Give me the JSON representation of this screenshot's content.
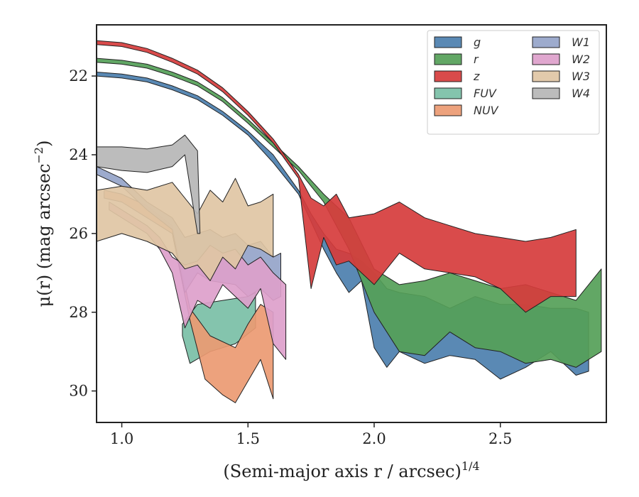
{
  "chart_data": {
    "type": "area",
    "xlabel": "(Semi-major axis r / arcsec)",
    "xlabel_sup": "1/4",
    "ylabel": "μ(r) (mag arcsec",
    "ylabel_sup": "−2",
    "ylabel_tail": ")",
    "xlim": [
      0.9,
      2.92
    ],
    "ylim": [
      30.8,
      20.7
    ],
    "y_inverted": true,
    "xticks": [
      1.0,
      1.5,
      2.0,
      2.5
    ],
    "xtick_labels": [
      "1.0",
      "1.5",
      "2.0",
      "2.5"
    ],
    "yticks": [
      22,
      24,
      26,
      28,
      30
    ],
    "ytick_labels": [
      "22",
      "24",
      "26",
      "28",
      "30"
    ],
    "legend_placement": "top-right",
    "series": [
      {
        "name": "g",
        "color": "#4c7fae",
        "upper": [
          [
            0.9,
            21.9
          ],
          [
            1.0,
            21.95
          ],
          [
            1.1,
            22.05
          ],
          [
            1.2,
            22.25
          ],
          [
            1.3,
            22.5
          ],
          [
            1.4,
            22.9
          ],
          [
            1.5,
            23.4
          ],
          [
            1.6,
            24.0
          ],
          [
            1.7,
            24.9
          ],
          [
            1.75,
            25.5
          ],
          [
            1.8,
            26.0
          ],
          [
            1.85,
            26.4
          ],
          [
            1.9,
            26.5
          ],
          [
            1.95,
            26.7
          ],
          [
            2.0,
            27.0
          ],
          [
            2.05,
            27.4
          ],
          [
            2.1,
            27.5
          ],
          [
            2.2,
            27.6
          ],
          [
            2.3,
            27.9
          ],
          [
            2.4,
            27.6
          ],
          [
            2.5,
            27.8
          ],
          [
            2.6,
            27.8
          ],
          [
            2.7,
            27.9
          ],
          [
            2.8,
            27.9
          ],
          [
            2.85,
            28.0
          ]
        ],
        "lower": [
          [
            0.9,
            22.0
          ],
          [
            1.0,
            22.05
          ],
          [
            1.1,
            22.15
          ],
          [
            1.2,
            22.35
          ],
          [
            1.3,
            22.6
          ],
          [
            1.4,
            23.0
          ],
          [
            1.5,
            23.5
          ],
          [
            1.6,
            24.2
          ],
          [
            1.7,
            25.0
          ],
          [
            1.75,
            25.7
          ],
          [
            1.8,
            26.4
          ],
          [
            1.85,
            27.0
          ],
          [
            1.9,
            27.5
          ],
          [
            1.95,
            27.2
          ],
          [
            2.0,
            28.9
          ],
          [
            2.05,
            29.4
          ],
          [
            2.1,
            29.0
          ],
          [
            2.2,
            29.3
          ],
          [
            2.3,
            29.1
          ],
          [
            2.4,
            29.2
          ],
          [
            2.5,
            29.7
          ],
          [
            2.6,
            29.4
          ],
          [
            2.7,
            29.0
          ],
          [
            2.8,
            29.6
          ],
          [
            2.85,
            29.5
          ]
        ]
      },
      {
        "name": "r",
        "color": "#55a058",
        "upper": [
          [
            0.9,
            21.55
          ],
          [
            1.0,
            21.6
          ],
          [
            1.1,
            21.7
          ],
          [
            1.2,
            21.9
          ],
          [
            1.3,
            22.15
          ],
          [
            1.4,
            22.55
          ],
          [
            1.5,
            23.1
          ],
          [
            1.6,
            23.7
          ],
          [
            1.7,
            24.3
          ],
          [
            1.8,
            25.0
          ],
          [
            1.9,
            25.6
          ],
          [
            2.0,
            26.9
          ],
          [
            2.1,
            27.3
          ],
          [
            2.2,
            27.2
          ],
          [
            2.3,
            27.0
          ],
          [
            2.4,
            27.2
          ],
          [
            2.5,
            27.4
          ],
          [
            2.6,
            27.3
          ],
          [
            2.7,
            27.5
          ],
          [
            2.8,
            27.7
          ],
          [
            2.9,
            26.9
          ]
        ],
        "lower": [
          [
            0.9,
            21.65
          ],
          [
            1.0,
            21.7
          ],
          [
            1.1,
            21.8
          ],
          [
            1.2,
            22.0
          ],
          [
            1.3,
            22.25
          ],
          [
            1.4,
            22.65
          ],
          [
            1.5,
            23.2
          ],
          [
            1.6,
            23.8
          ],
          [
            1.7,
            24.4
          ],
          [
            1.8,
            25.2
          ],
          [
            1.9,
            26.4
          ],
          [
            2.0,
            28.0
          ],
          [
            2.1,
            29.0
          ],
          [
            2.2,
            29.1
          ],
          [
            2.3,
            28.5
          ],
          [
            2.4,
            28.9
          ],
          [
            2.5,
            29.0
          ],
          [
            2.6,
            29.3
          ],
          [
            2.7,
            29.2
          ],
          [
            2.8,
            29.4
          ],
          [
            2.9,
            29.0
          ]
        ]
      },
      {
        "name": "z",
        "color": "#d63c3c",
        "upper": [
          [
            0.9,
            21.1
          ],
          [
            1.0,
            21.15
          ],
          [
            1.1,
            21.3
          ],
          [
            1.2,
            21.55
          ],
          [
            1.3,
            21.85
          ],
          [
            1.4,
            22.3
          ],
          [
            1.5,
            22.9
          ],
          [
            1.6,
            23.6
          ],
          [
            1.7,
            24.5
          ],
          [
            1.75,
            25.1
          ],
          [
            1.8,
            25.3
          ],
          [
            1.85,
            25.0
          ],
          [
            1.9,
            25.6
          ],
          [
            2.0,
            25.5
          ],
          [
            2.1,
            25.2
          ],
          [
            2.2,
            25.6
          ],
          [
            2.3,
            25.8
          ],
          [
            2.4,
            26.0
          ],
          [
            2.5,
            26.1
          ],
          [
            2.6,
            26.2
          ],
          [
            2.7,
            26.1
          ],
          [
            2.8,
            25.9
          ]
        ],
        "lower": [
          [
            0.9,
            21.2
          ],
          [
            1.0,
            21.25
          ],
          [
            1.1,
            21.4
          ],
          [
            1.2,
            21.65
          ],
          [
            1.3,
            21.95
          ],
          [
            1.4,
            22.4
          ],
          [
            1.5,
            23.0
          ],
          [
            1.6,
            23.7
          ],
          [
            1.7,
            24.6
          ],
          [
            1.75,
            27.4
          ],
          [
            1.8,
            26.1
          ],
          [
            1.85,
            26.8
          ],
          [
            1.9,
            26.7
          ],
          [
            2.0,
            27.3
          ],
          [
            2.1,
            26.5
          ],
          [
            2.2,
            26.9
          ],
          [
            2.3,
            27.0
          ],
          [
            2.4,
            27.1
          ],
          [
            2.5,
            27.4
          ],
          [
            2.6,
            28.0
          ],
          [
            2.7,
            27.6
          ],
          [
            2.8,
            27.6
          ]
        ]
      },
      {
        "name": "FUV",
        "color": "#7abfa6",
        "upper": [
          [
            1.24,
            28.3
          ],
          [
            1.3,
            27.8
          ],
          [
            1.4,
            27.7
          ],
          [
            1.5,
            27.6
          ],
          [
            1.53,
            27.5
          ]
        ],
        "lower": [
          [
            1.24,
            28.6
          ],
          [
            1.27,
            29.3
          ],
          [
            1.35,
            29.0
          ],
          [
            1.45,
            28.8
          ],
          [
            1.53,
            28.4
          ]
        ]
      },
      {
        "name": "NUV",
        "color": "#eb9a72",
        "upper": [
          [
            0.93,
            24.9
          ],
          [
            1.0,
            25.0
          ],
          [
            1.1,
            25.3
          ],
          [
            1.2,
            25.8
          ],
          [
            1.27,
            27.9
          ],
          [
            1.35,
            28.6
          ],
          [
            1.45,
            28.9
          ],
          [
            1.5,
            28.3
          ],
          [
            1.55,
            27.8
          ],
          [
            1.6,
            28.0
          ]
        ],
        "lower": [
          [
            0.93,
            25.1
          ],
          [
            1.0,
            25.2
          ],
          [
            1.1,
            25.6
          ],
          [
            1.2,
            26.0
          ],
          [
            1.27,
            28.2
          ],
          [
            1.33,
            29.7
          ],
          [
            1.4,
            30.1
          ],
          [
            1.45,
            30.3
          ],
          [
            1.55,
            29.2
          ],
          [
            1.6,
            30.2
          ]
        ]
      },
      {
        "name": "W1",
        "color": "#95a4c9",
        "upper": [
          [
            0.9,
            24.3
          ],
          [
            1.0,
            24.6
          ],
          [
            1.1,
            25.2
          ],
          [
            1.2,
            25.6
          ],
          [
            1.25,
            26.1
          ],
          [
            1.35,
            25.9
          ],
          [
            1.4,
            26.1
          ],
          [
            1.45,
            26.0
          ],
          [
            1.5,
            26.3
          ],
          [
            1.55,
            26.2
          ],
          [
            1.6,
            26.6
          ],
          [
            1.63,
            26.5
          ]
        ],
        "lower": [
          [
            0.9,
            24.5
          ],
          [
            1.0,
            24.8
          ],
          [
            1.1,
            25.4
          ],
          [
            1.2,
            25.9
          ],
          [
            1.25,
            27.5
          ],
          [
            1.3,
            27.0
          ],
          [
            1.35,
            27.2
          ],
          [
            1.45,
            27.3
          ],
          [
            1.5,
            27.6
          ],
          [
            1.55,
            27.4
          ],
          [
            1.6,
            27.7
          ],
          [
            1.63,
            27.6
          ]
        ]
      },
      {
        "name": "W2",
        "color": "#dda0cb",
        "upper": [
          [
            0.95,
            25.2
          ],
          [
            1.0,
            25.4
          ],
          [
            1.1,
            25.8
          ],
          [
            1.15,
            26.1
          ],
          [
            1.2,
            26.6
          ],
          [
            1.25,
            26.8
          ],
          [
            1.3,
            26.7
          ],
          [
            1.35,
            26.3
          ],
          [
            1.4,
            26.5
          ],
          [
            1.45,
            26.4
          ],
          [
            1.5,
            26.8
          ],
          [
            1.55,
            26.6
          ],
          [
            1.6,
            27.0
          ],
          [
            1.65,
            27.3
          ]
        ],
        "lower": [
          [
            0.95,
            25.4
          ],
          [
            1.0,
            25.6
          ],
          [
            1.1,
            26.0
          ],
          [
            1.15,
            26.4
          ],
          [
            1.2,
            27.0
          ],
          [
            1.25,
            28.4
          ],
          [
            1.3,
            27.7
          ],
          [
            1.35,
            27.9
          ],
          [
            1.4,
            27.3
          ],
          [
            1.45,
            27.6
          ],
          [
            1.5,
            27.9
          ],
          [
            1.55,
            27.4
          ],
          [
            1.6,
            28.8
          ],
          [
            1.65,
            29.2
          ]
        ]
      },
      {
        "name": "W3",
        "color": "#dfc6a4",
        "upper": [
          [
            0.9,
            24.9
          ],
          [
            1.0,
            24.8
          ],
          [
            1.1,
            24.9
          ],
          [
            1.2,
            24.7
          ],
          [
            1.3,
            25.5
          ],
          [
            1.35,
            24.9
          ],
          [
            1.4,
            25.2
          ],
          [
            1.45,
            24.6
          ],
          [
            1.5,
            25.3
          ],
          [
            1.55,
            25.2
          ],
          [
            1.6,
            25.0
          ]
        ],
        "lower": [
          [
            0.9,
            26.2
          ],
          [
            1.0,
            26.0
          ],
          [
            1.1,
            26.2
          ],
          [
            1.2,
            26.5
          ],
          [
            1.25,
            26.9
          ],
          [
            1.3,
            26.8
          ],
          [
            1.35,
            27.2
          ],
          [
            1.4,
            26.6
          ],
          [
            1.45,
            26.9
          ],
          [
            1.5,
            26.3
          ],
          [
            1.55,
            26.4
          ],
          [
            1.6,
            26.6
          ]
        ]
      },
      {
        "name": "W4",
        "color": "#b6b6b6",
        "upper": [
          [
            0.9,
            23.8
          ],
          [
            1.0,
            23.8
          ],
          [
            1.1,
            23.85
          ],
          [
            1.2,
            23.75
          ],
          [
            1.25,
            23.5
          ],
          [
            1.3,
            23.9
          ],
          [
            1.31,
            26.0
          ]
        ],
        "lower": [
          [
            0.9,
            24.3
          ],
          [
            1.0,
            24.4
          ],
          [
            1.1,
            24.45
          ],
          [
            1.2,
            24.3
          ],
          [
            1.25,
            24.0
          ],
          [
            1.3,
            26.0
          ],
          [
            1.31,
            26.0
          ]
        ]
      }
    ]
  }
}
